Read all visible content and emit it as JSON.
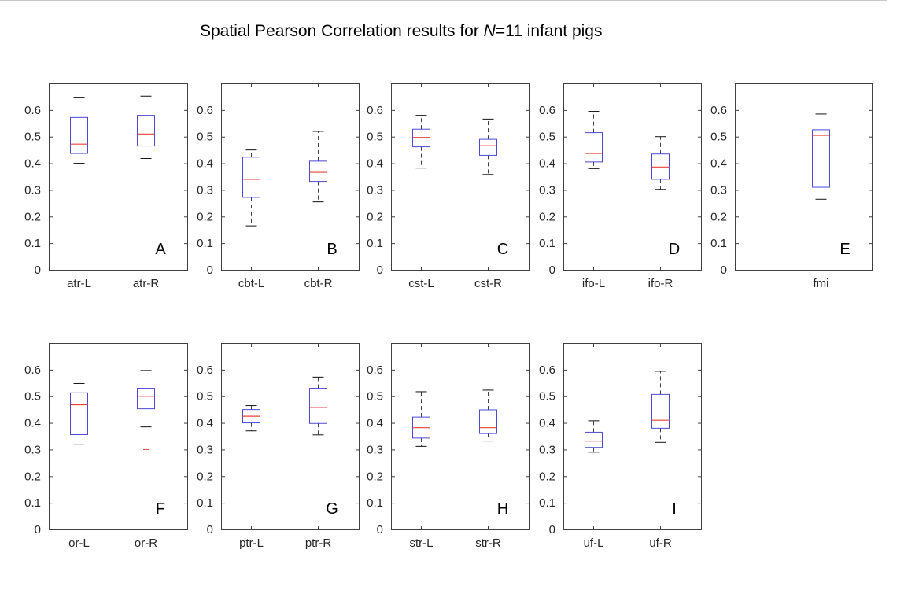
{
  "title": {
    "prefix": "Spatial Pearson Correlation results for ",
    "n_symbol": "N",
    "suffix": "=11 infant pigs"
  },
  "colors": {
    "box": "#4a4ad6",
    "median": "#e8423a",
    "whisker": "#404040",
    "outlier": "#e8423a",
    "axis": "#404040"
  },
  "chart_data": [
    {
      "type": "box",
      "panel": "A",
      "ylim": [
        0,
        0.7
      ],
      "yticks": [
        0,
        0.1,
        0.2,
        0.3,
        0.4,
        0.5,
        0.6
      ],
      "categories": [
        "atr-L",
        "atr-R"
      ],
      "boxes": [
        {
          "min": 0.4,
          "q1": 0.437,
          "median": 0.472,
          "q3": 0.572,
          "max": 0.648,
          "outliers": []
        },
        {
          "min": 0.418,
          "q1": 0.465,
          "median": 0.51,
          "q3": 0.58,
          "max": 0.652,
          "outliers": []
        }
      ]
    },
    {
      "type": "box",
      "panel": "B",
      "ylim": [
        0,
        0.7
      ],
      "yticks": [
        0,
        0.1,
        0.2,
        0.3,
        0.4,
        0.5,
        0.6
      ],
      "categories": [
        "cbt-L",
        "cbt-R"
      ],
      "boxes": [
        {
          "min": 0.165,
          "q1": 0.272,
          "median": 0.34,
          "q3": 0.423,
          "max": 0.45,
          "outliers": []
        },
        {
          "min": 0.255,
          "q1": 0.332,
          "median": 0.366,
          "q3": 0.408,
          "max": 0.52,
          "outliers": []
        }
      ]
    },
    {
      "type": "box",
      "panel": "C",
      "ylim": [
        0,
        0.7
      ],
      "yticks": [
        0,
        0.1,
        0.2,
        0.3,
        0.4,
        0.5,
        0.6
      ],
      "categories": [
        "cst-L",
        "cst-R"
      ],
      "boxes": [
        {
          "min": 0.382,
          "q1": 0.462,
          "median": 0.497,
          "q3": 0.528,
          "max": 0.58,
          "outliers": []
        },
        {
          "min": 0.358,
          "q1": 0.43,
          "median": 0.466,
          "q3": 0.49,
          "max": 0.566,
          "outliers": []
        }
      ]
    },
    {
      "type": "box",
      "panel": "D",
      "ylim": [
        0,
        0.7
      ],
      "yticks": [
        0,
        0.1,
        0.2,
        0.3,
        0.4,
        0.5,
        0.6
      ],
      "categories": [
        "ifo-L",
        "ifo-R"
      ],
      "boxes": [
        {
          "min": 0.38,
          "q1": 0.405,
          "median": 0.437,
          "q3": 0.515,
          "max": 0.595,
          "outliers": []
        },
        {
          "min": 0.302,
          "q1": 0.34,
          "median": 0.386,
          "q3": 0.435,
          "max": 0.5,
          "outliers": []
        }
      ]
    },
    {
      "type": "box",
      "panel": "E",
      "ylim": [
        0,
        0.7
      ],
      "yticks": [
        0,
        0.1,
        0.2,
        0.3,
        0.4,
        0.5,
        0.6
      ],
      "categories": [
        "fmi"
      ],
      "boxes": [
        {
          "min": 0.265,
          "q1": 0.31,
          "median": 0.505,
          "q3": 0.526,
          "max": 0.585,
          "outliers": []
        }
      ]
    },
    {
      "type": "box",
      "panel": "F",
      "ylim": [
        0,
        0.7
      ],
      "yticks": [
        0,
        0.1,
        0.2,
        0.3,
        0.4,
        0.5,
        0.6
      ],
      "categories": [
        "or-L",
        "or-R"
      ],
      "boxes": [
        {
          "min": 0.32,
          "q1": 0.356,
          "median": 0.468,
          "q3": 0.513,
          "max": 0.548,
          "outliers": []
        },
        {
          "min": 0.385,
          "q1": 0.453,
          "median": 0.5,
          "q3": 0.53,
          "max": 0.597,
          "outliers": [
            0.3
          ]
        }
      ]
    },
    {
      "type": "box",
      "panel": "G",
      "ylim": [
        0,
        0.7
      ],
      "yticks": [
        0,
        0.1,
        0.2,
        0.3,
        0.4,
        0.5,
        0.6
      ],
      "categories": [
        "ptr-L",
        "ptr-R"
      ],
      "boxes": [
        {
          "min": 0.37,
          "q1": 0.4,
          "median": 0.425,
          "q3": 0.45,
          "max": 0.465,
          "outliers": []
        },
        {
          "min": 0.355,
          "q1": 0.398,
          "median": 0.458,
          "q3": 0.53,
          "max": 0.572,
          "outliers": []
        }
      ]
    },
    {
      "type": "box",
      "panel": "H",
      "ylim": [
        0,
        0.7
      ],
      "yticks": [
        0,
        0.1,
        0.2,
        0.3,
        0.4,
        0.5,
        0.6
      ],
      "categories": [
        "str-L",
        "str-R"
      ],
      "boxes": [
        {
          "min": 0.312,
          "q1": 0.343,
          "median": 0.382,
          "q3": 0.422,
          "max": 0.517,
          "outliers": []
        },
        {
          "min": 0.332,
          "q1": 0.36,
          "median": 0.382,
          "q3": 0.449,
          "max": 0.523,
          "outliers": []
        }
      ]
    },
    {
      "type": "box",
      "panel": "I",
      "ylim": [
        0,
        0.7
      ],
      "yticks": [
        0,
        0.1,
        0.2,
        0.3,
        0.4,
        0.5,
        0.6
      ],
      "categories": [
        "uf-L",
        "uf-R"
      ],
      "boxes": [
        {
          "min": 0.29,
          "q1": 0.308,
          "median": 0.332,
          "q3": 0.365,
          "max": 0.408,
          "outliers": []
        },
        {
          "min": 0.327,
          "q1": 0.38,
          "median": 0.41,
          "q3": 0.507,
          "max": 0.594,
          "outliers": []
        }
      ]
    }
  ]
}
